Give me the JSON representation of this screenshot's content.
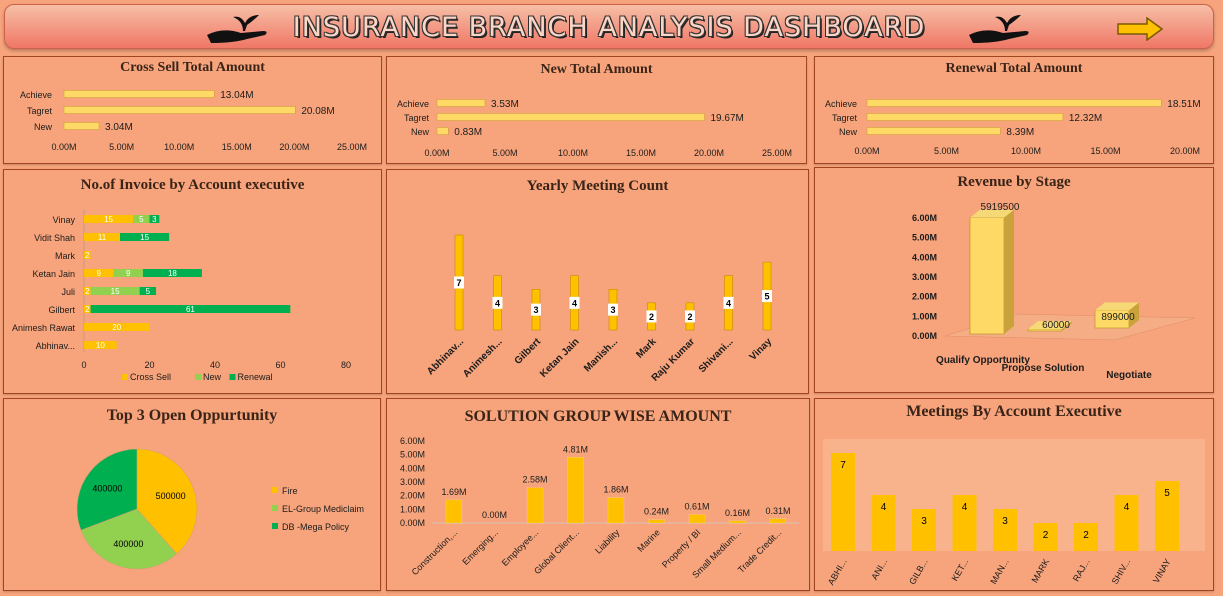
{
  "header": {
    "title": "INSURANCE BRANCH ANALYSIS DASHBOARD",
    "logo_icon": "hand-plant-icon",
    "arrow_icon": "right-arrow-icon"
  },
  "colors": {
    "gold": "#ffc000",
    "light_gold": "#ffd966",
    "green": "#92d050",
    "teal": "#00b050",
    "bg": "#f7a47c",
    "border": "#a0451f"
  },
  "cross_sell": {
    "title": "Cross Sell Total Amount",
    "chart_data": {
      "type": "bar",
      "orientation": "horizontal",
      "categories": [
        "Achieve",
        "Tagret",
        "New"
      ],
      "values": [
        13.04,
        20.08,
        3.04
      ],
      "data_labels": [
        "13.04M",
        "20.08M",
        "3.04M"
      ],
      "ticks": [
        "0.00M",
        "5.00M",
        "10.00M",
        "15.00M",
        "20.00M",
        "25.00M"
      ],
      "xlim": [
        0,
        25
      ]
    }
  },
  "new_total": {
    "title": "New Total Amount",
    "chart_data": {
      "type": "bar",
      "orientation": "horizontal",
      "categories": [
        "Achieve",
        "Tagret",
        "New"
      ],
      "values": [
        3.53,
        19.67,
        0.83
      ],
      "data_labels": [
        "3.53M",
        "19.67M",
        "0.83M"
      ],
      "ticks": [
        "0.00M",
        "5.00M",
        "10.00M",
        "15.00M",
        "20.00M",
        "25.00M"
      ],
      "xlim": [
        0,
        25
      ]
    }
  },
  "renewal_total": {
    "title": "Renewal Total Amount",
    "chart_data": {
      "type": "bar",
      "orientation": "horizontal",
      "categories": [
        "Achieve",
        "Tagret",
        "New"
      ],
      "values": [
        18.51,
        12.32,
        8.39
      ],
      "data_labels": [
        "18.51M",
        "12.32M",
        "8.39M"
      ],
      "ticks": [
        "0.00M",
        "5.00M",
        "10.00M",
        "15.00M",
        "20.00M"
      ],
      "xlim": [
        0,
        20
      ]
    }
  },
  "invoice": {
    "title": "No.of Invoice by Account executive",
    "chart_data": {
      "type": "bar",
      "orientation": "horizontal",
      "stacked": true,
      "categories": [
        "Vinay",
        "Vidit Shah",
        "Mark",
        "Ketan Jain",
        "Juli",
        "Gilbert",
        "Animesh Rawat",
        "Abhinav..."
      ],
      "series": [
        {
          "name": "Cross Sell",
          "values": [
            15,
            11,
            2,
            9,
            2,
            2,
            20,
            10
          ]
        },
        {
          "name": "New",
          "values": [
            5,
            0,
            0,
            9,
            15,
            0,
            0,
            0
          ]
        },
        {
          "name": "Renewal",
          "values": [
            3,
            15,
            0,
            18,
            5,
            61,
            0,
            0
          ]
        }
      ],
      "ticks": [
        "0",
        "20",
        "40",
        "60",
        "80"
      ],
      "xlim": [
        0,
        80
      ],
      "legend": "bottom"
    }
  },
  "yearly": {
    "title": "Yearly Meeting Count",
    "chart_data": {
      "type": "bar",
      "categories": [
        "Abhinav...",
        "Animesh...",
        "Gilbert",
        "Ketan Jain",
        "Manish...",
        "Mark",
        "Raju Kumar",
        "Shivani...",
        "Vinay"
      ],
      "values": [
        7,
        4,
        3,
        4,
        3,
        2,
        2,
        4,
        5
      ],
      "ylim": [
        0,
        8
      ]
    }
  },
  "revenue": {
    "title": "Revenue by Stage",
    "chart_data": {
      "type": "bar",
      "categories": [
        "Qualify Opportunity",
        "Propose Solution",
        "Negotiate"
      ],
      "values": [
        5919500,
        60000,
        899000
      ],
      "data_labels": [
        "5919500",
        "60000",
        "899000"
      ],
      "ticks": [
        "0.00M",
        "1.00M",
        "2.00M",
        "3.00M",
        "4.00M",
        "5.00M",
        "6.00M"
      ],
      "ylim": [
        0,
        6
      ]
    }
  },
  "top3": {
    "title": "Top 3 Open Oppurtunity",
    "chart_data": {
      "type": "pie",
      "categories": [
        "Fire",
        "EL-Group Mediclaim",
        "DB -Mega Policy"
      ],
      "values": [
        500000,
        400000,
        400000
      ],
      "data_labels": [
        "500000",
        "400000",
        "400000"
      ],
      "legend": "right"
    }
  },
  "solution": {
    "title": "SOLUTION GROUP WISE AMOUNT",
    "chart_data": {
      "type": "bar",
      "categories": [
        "Construction,...",
        "Emerging...",
        "Employee...",
        "Global Client...",
        "Liability",
        "Marine",
        "Property / BI",
        "Small Medium...",
        "Trade Credit..."
      ],
      "values": [
        1.69,
        0.0,
        2.58,
        4.81,
        1.86,
        0.24,
        0.61,
        0.16,
        0.31
      ],
      "data_labels": [
        "1.69M",
        "0.00M",
        "2.58M",
        "4.81M",
        "1.86M",
        "0.24M",
        "0.61M",
        "0.16M",
        "0.31M"
      ],
      "ticks": [
        "0.00M",
        "1.00M",
        "2.00M",
        "3.00M",
        "4.00M",
        "5.00M",
        "6.00M"
      ],
      "ylim": [
        0,
        6
      ]
    }
  },
  "meetings": {
    "title": "Meetings By Account Executive",
    "chart_data": {
      "type": "bar",
      "categories": [
        "ABHI...",
        "ANI...",
        "GILB...",
        "KET...",
        "MAN...",
        "MARK",
        "RAJ...",
        "SHIV...",
        "VINAY"
      ],
      "values": [
        7,
        4,
        3,
        4,
        3,
        2,
        2,
        4,
        5
      ],
      "ylim": [
        0,
        8.5
      ]
    }
  }
}
